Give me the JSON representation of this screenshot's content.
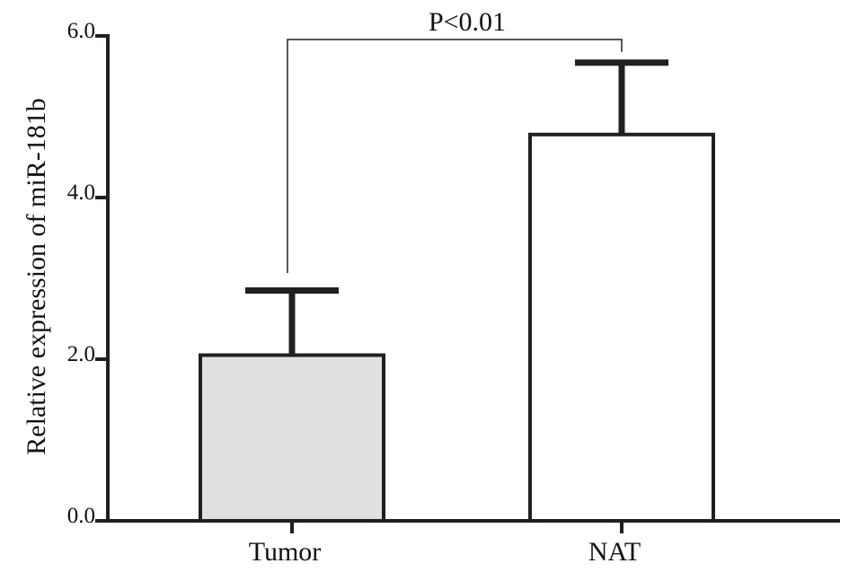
{
  "chart_data": {
    "type": "bar",
    "categories": [
      "Tumor",
      "NAT"
    ],
    "values": [
      2.05,
      4.78
    ],
    "error_upper": [
      2.85,
      5.67
    ],
    "ylabel": "Relative expression of miR-181b",
    "xlabel": "",
    "ylim": [
      0,
      6
    ],
    "yticks": [
      {
        "value": 0,
        "label": "0.0"
      },
      {
        "value": 2,
        "label": "2.0"
      },
      {
        "value": 4,
        "label": "4.0"
      },
      {
        "value": 6,
        "label": "6.0"
      }
    ],
    "grid": false,
    "bar_colors": [
      "#e0e0e0",
      "#ffffff"
    ],
    "stroke_color": "#231f20",
    "significance": {
      "label": "P<0.01",
      "between": [
        0,
        1
      ],
      "y": 6.0
    }
  }
}
